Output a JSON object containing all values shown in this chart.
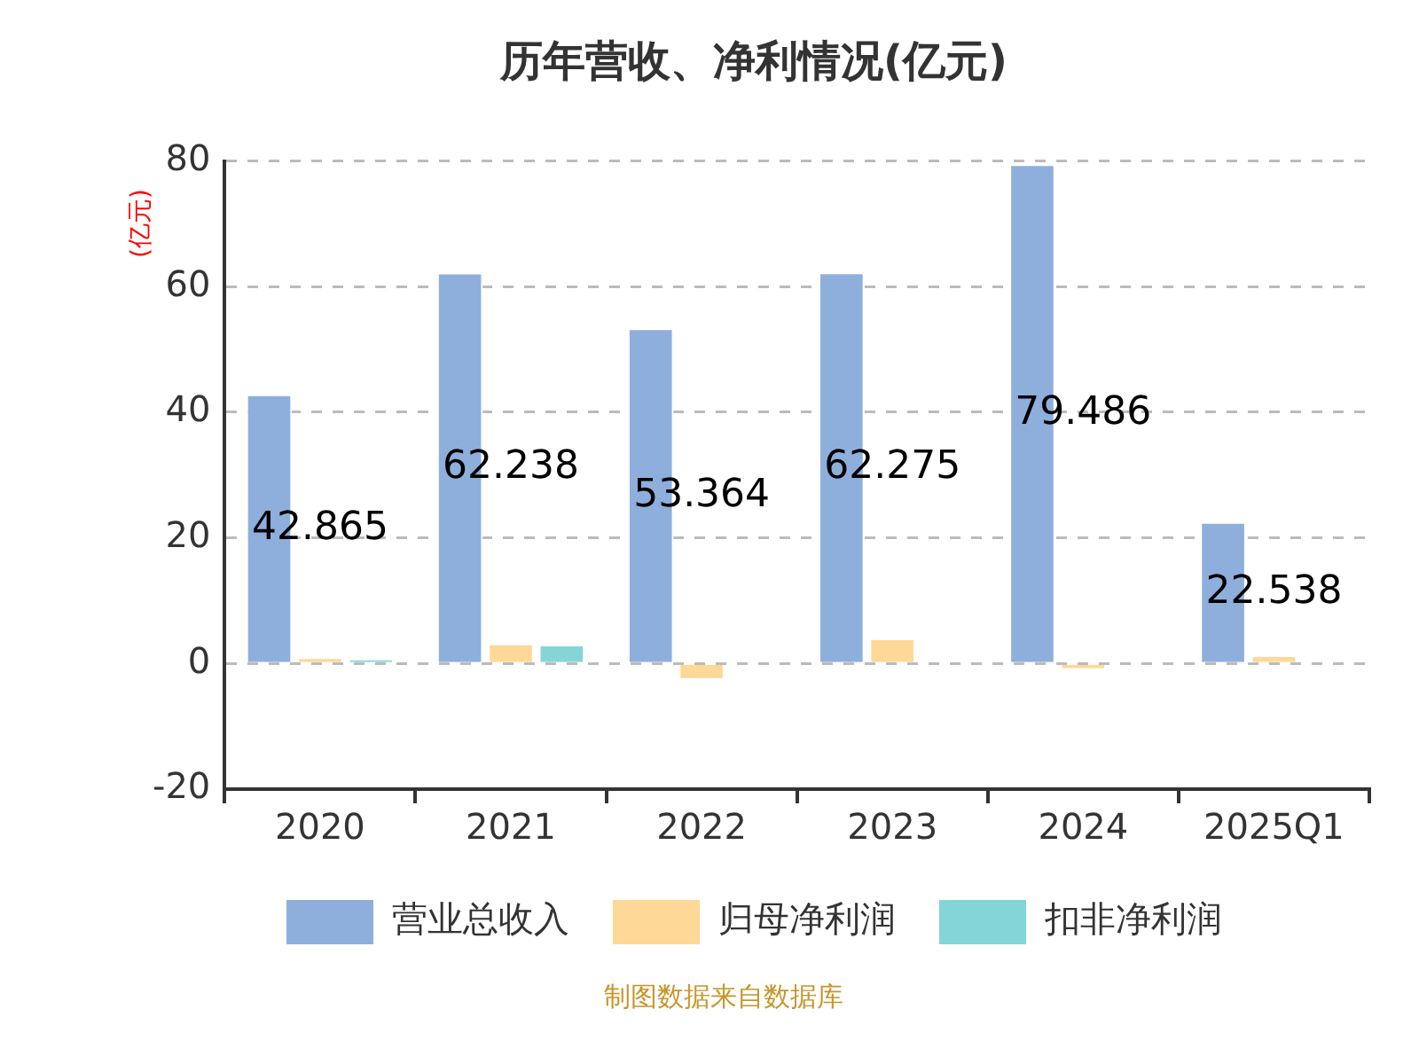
{
  "chart_data": {
    "type": "bar",
    "title": "历年营收、净利情况(亿元)",
    "ylabel": "(亿元)",
    "categories": [
      "2020",
      "2021",
      "2022",
      "2023",
      "2024",
      "2025Q1"
    ],
    "series": [
      {
        "name": "营业总收入",
        "color": "#8eafdc",
        "values": [
          42.865,
          62.238,
          53.364,
          62.275,
          79.486,
          22.538
        ],
        "value_labels": [
          "42.865",
          "62.238",
          "53.364",
          "62.275",
          "79.486",
          "22.538"
        ]
      },
      {
        "name": "归母净利润",
        "color": "#fed896",
        "values": [
          1.0,
          3.2,
          -2.6,
          4.0,
          -1.0,
          1.3
        ]
      },
      {
        "name": "扣非净利润",
        "color": "#84d5d8",
        "values": [
          0.8,
          3.0,
          -0.2,
          null,
          null,
          0.2
        ]
      }
    ],
    "ylim": [
      -20,
      80
    ],
    "yticks": [
      -20,
      0,
      20,
      40,
      60,
      80
    ],
    "grid": "y",
    "legend": "bottom",
    "annotations": [
      "制图数据来自数据库"
    ]
  }
}
